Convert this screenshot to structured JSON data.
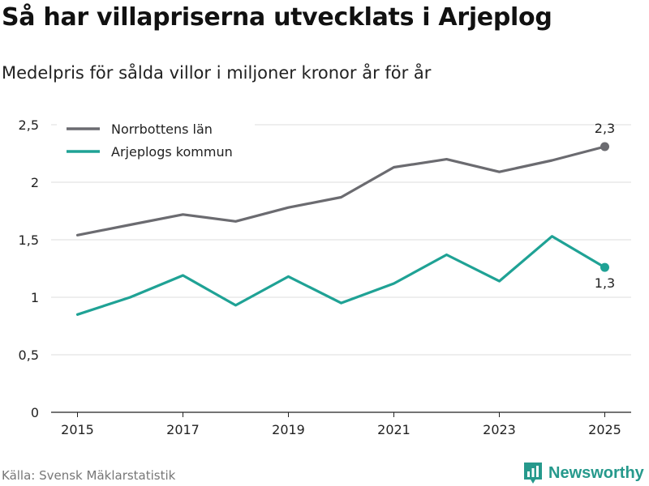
{
  "title": "Så har villapriserna utvecklats i Arjeplog",
  "subtitle": "Medelpris för sålda villor i miljoner kronor år för år",
  "source": "Källa: Svensk Mäklarstatistik",
  "brand": {
    "name": "Newsworthy",
    "icon": "bar-chart-logo-icon",
    "color": "#26998c"
  },
  "chart_data": {
    "type": "line",
    "x": [
      2015,
      2016,
      2017,
      2018,
      2019,
      2020,
      2021,
      2022,
      2023,
      2024,
      2025
    ],
    "x_ticks": [
      "2015",
      "2017",
      "2019",
      "2021",
      "2023",
      "2025"
    ],
    "y_ticks": [
      "0",
      "0,5",
      "1",
      "1,5",
      "2",
      "2,5"
    ],
    "ylim": [
      0,
      2.5
    ],
    "legend_position": "top-left",
    "series": [
      {
        "name": "Norrbottens län",
        "color": "#6b6b70",
        "values": [
          1.54,
          1.63,
          1.72,
          1.66,
          1.78,
          1.87,
          2.13,
          2.2,
          2.09,
          2.19,
          2.31
        ],
        "end_label": "2,3"
      },
      {
        "name": "Arjeplogs kommun",
        "color": "#1fa295",
        "values": [
          0.85,
          1.0,
          1.19,
          0.93,
          1.18,
          0.95,
          1.12,
          1.37,
          1.14,
          1.53,
          1.26
        ],
        "end_label": "1,3"
      }
    ]
  }
}
